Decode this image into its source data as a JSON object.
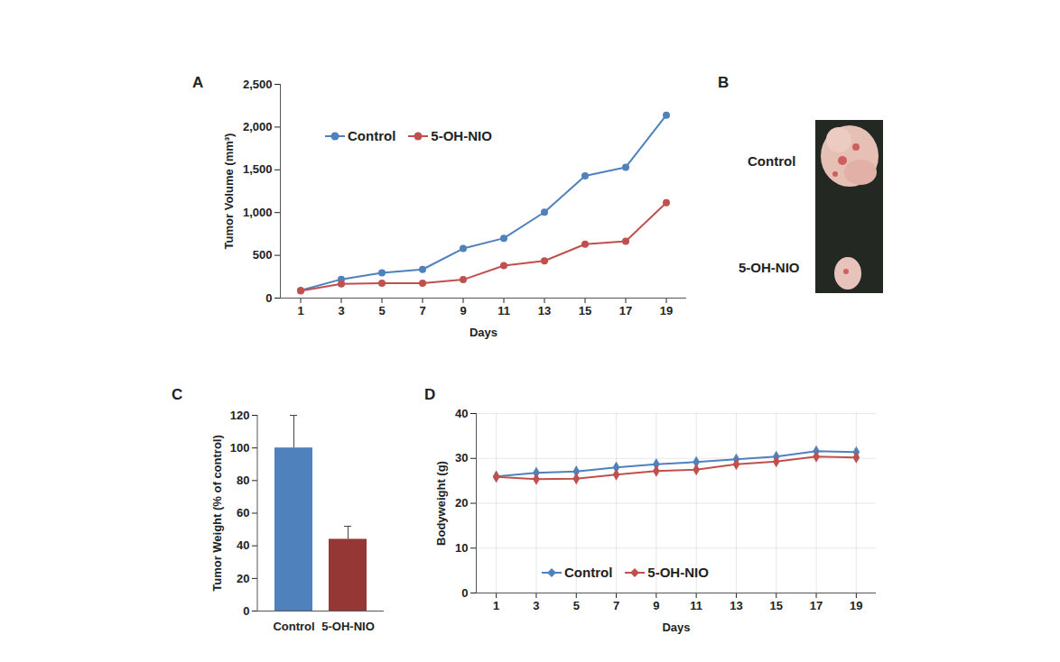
{
  "chart_data": [
    {
      "panel": "A",
      "type": "line",
      "x_label": "Days",
      "y_label": "Tumor Volume (mm³)",
      "x": [
        1,
        3,
        5,
        7,
        9,
        11,
        13,
        15,
        17,
        19
      ],
      "series": [
        {
          "name": "Control",
          "color": "#4f81bd",
          "marker": "circle",
          "values": [
            90,
            220,
            295,
            335,
            580,
            700,
            1005,
            1430,
            1530,
            2140
          ]
        },
        {
          "name": "5-OH-NIO",
          "color": "#c0504d",
          "marker": "circle",
          "values": [
            85,
            165,
            175,
            175,
            215,
            380,
            435,
            630,
            665,
            1115
          ]
        }
      ],
      "xlim": [
        0,
        20
      ],
      "xticks": [
        1,
        3,
        5,
        7,
        9,
        11,
        13,
        15,
        17,
        19
      ],
      "ylim": [
        0,
        2500
      ],
      "yticks": [
        0,
        500,
        {
          "value": 1000,
          "label": "1,000"
        },
        {
          "value": 1500,
          "label": "1,500"
        },
        {
          "value": 2000,
          "label": "2,000"
        },
        {
          "value": 2500,
          "label": "2,500"
        }
      ],
      "grid": false,
      "legend": "upper left"
    },
    {
      "panel": "B",
      "type": "image",
      "labels": [
        "Control",
        "5-OH-NIO"
      ]
    },
    {
      "panel": "C",
      "type": "bar",
      "y_label": "Tumor Weight (% of control)",
      "categories": [
        "Control",
        "5-OH-NIO"
      ],
      "values": [
        100,
        44
      ],
      "errors": [
        20,
        8
      ],
      "colors": [
        "#4f81bd",
        "#953735"
      ],
      "ylim": [
        0,
        120
      ],
      "yticks": [
        0,
        20,
        40,
        60,
        80,
        100,
        120
      ],
      "grid": false
    },
    {
      "panel": "D",
      "type": "line",
      "x_label": "Days",
      "y_label": "Bodyweight (g)",
      "x": [
        1,
        3,
        5,
        7,
        9,
        11,
        13,
        15,
        17,
        19
      ],
      "series": [
        {
          "name": "Control",
          "color": "#4f81bd",
          "marker": "diamond",
          "values": [
            26,
            26.8,
            27.1,
            28,
            28.7,
            29.2,
            29.8,
            30.4,
            31.6,
            31.4
          ]
        },
        {
          "name": "5-OH-NIO",
          "color": "#c0504d",
          "marker": "diamond",
          "values": [
            25.9,
            25.4,
            25.5,
            26.4,
            27.2,
            27.5,
            28.7,
            29.3,
            30.4,
            30.2
          ]
        }
      ],
      "xlim": [
        0,
        20
      ],
      "xticks": [
        1,
        3,
        5,
        7,
        9,
        11,
        13,
        15,
        17,
        19
      ],
      "ylim": [
        0,
        40
      ],
      "yticks": [
        0,
        10,
        20,
        30,
        40
      ],
      "grid": true,
      "legend": "lower center"
    }
  ]
}
